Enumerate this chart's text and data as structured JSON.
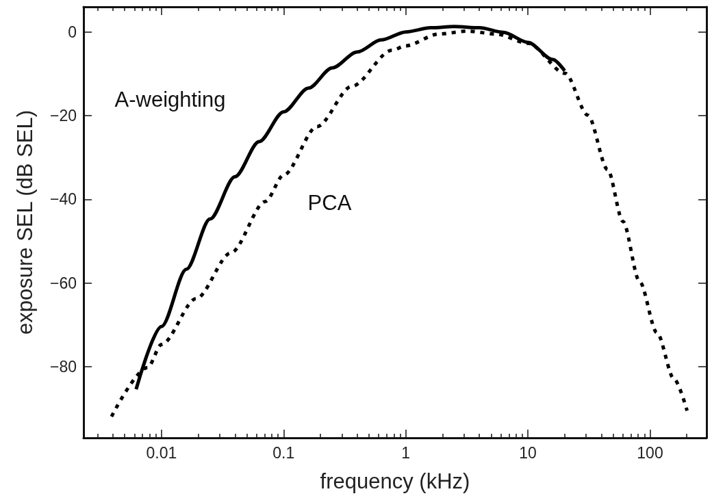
{
  "chart_data": {
    "type": "line",
    "xlabel": "frequency (kHz)",
    "ylabel": "exposure SEL (dB SEL)",
    "log": "x",
    "xlim": [
      0.0023,
      290
    ],
    "ylim": [
      -97,
      6
    ],
    "xticks": [
      {
        "value": 0.003,
        "label": null
      },
      {
        "value": 0.004,
        "label": null
      },
      {
        "value": 0.005,
        "label": null
      },
      {
        "value": 0.006,
        "label": null
      },
      {
        "value": 0.007,
        "label": null
      },
      {
        "value": 0.008,
        "label": null
      },
      {
        "value": 0.009,
        "label": null
      },
      0.01,
      {
        "value": 0.02,
        "label": null
      },
      {
        "value": 0.03,
        "label": null
      },
      {
        "value": 0.04,
        "label": null
      },
      {
        "value": 0.05,
        "label": null
      },
      {
        "value": 0.06,
        "label": null
      },
      {
        "value": 0.07,
        "label": null
      },
      {
        "value": 0.08,
        "label": null
      },
      {
        "value": 0.09,
        "label": null
      },
      0.1,
      {
        "value": 0.2,
        "label": null
      },
      {
        "value": 0.3,
        "label": null
      },
      {
        "value": 0.4,
        "label": null
      },
      {
        "value": 0.5,
        "label": null
      },
      {
        "value": 0.6,
        "label": null
      },
      {
        "value": 0.7,
        "label": null
      },
      {
        "value": 0.8,
        "label": null
      },
      {
        "value": 0.9,
        "label": null
      },
      1,
      {
        "value": 2,
        "label": null
      },
      {
        "value": 3,
        "label": null
      },
      {
        "value": 4,
        "label": null
      },
      {
        "value": 5,
        "label": null
      },
      {
        "value": 6,
        "label": null
      },
      {
        "value": 7,
        "label": null
      },
      {
        "value": 8,
        "label": null
      },
      {
        "value": 9,
        "label": null
      },
      10,
      {
        "value": 20,
        "label": null
      },
      {
        "value": 30,
        "label": null
      },
      {
        "value": 40,
        "label": null
      },
      {
        "value": 50,
        "label": null
      },
      {
        "value": 60,
        "label": null
      },
      {
        "value": 70,
        "label": null
      },
      {
        "value": 80,
        "label": null
      },
      {
        "value": 90,
        "label": null
      },
      100,
      {
        "value": 200,
        "label": null
      }
    ],
    "yticks": [
      -80,
      -60,
      -40,
      -20,
      0
    ],
    "grid": false,
    "legend": false,
    "marker": "none",
    "series": [
      {
        "name": "A-weighting",
        "color": "#000000",
        "line_style": "solid",
        "x": [
          0.0062,
          0.01,
          0.016,
          0.025,
          0.04,
          0.063,
          0.1,
          0.16,
          0.25,
          0.4,
          0.63,
          1,
          1.6,
          2.5,
          4,
          6.3,
          10,
          16,
          20
        ],
        "values": [
          -85.4,
          -70.4,
          -56.7,
          -44.7,
          -34.6,
          -26.2,
          -19.1,
          -13.4,
          -8.6,
          -4.8,
          -1.9,
          0,
          1,
          1.3,
          1,
          -0.1,
          -2.5,
          -6.6,
          -9.3
        ]
      },
      {
        "name": "PCA",
        "color": "#000000",
        "line_style": "dotted",
        "x": [
          0.0039,
          0.0077,
          0.01,
          0.0193,
          0.037,
          0.071,
          0.1,
          0.188,
          0.361,
          0.77,
          1,
          1.86,
          3.2,
          5.5,
          10,
          20.2,
          31,
          45,
          60,
          82,
          114,
          157,
          201
        ],
        "values": [
          -91.9,
          -80.2,
          -74.7,
          -63.7,
          -52.8,
          -40.5,
          -34.2,
          -22.6,
          -13,
          -4.4,
          -3.3,
          -0.5,
          0.2,
          -0.5,
          -2.7,
          -9.9,
          -19.9,
          -32.9,
          -45.3,
          -59.6,
          -71.9,
          -82.9,
          -90.5
        ]
      }
    ]
  }
}
